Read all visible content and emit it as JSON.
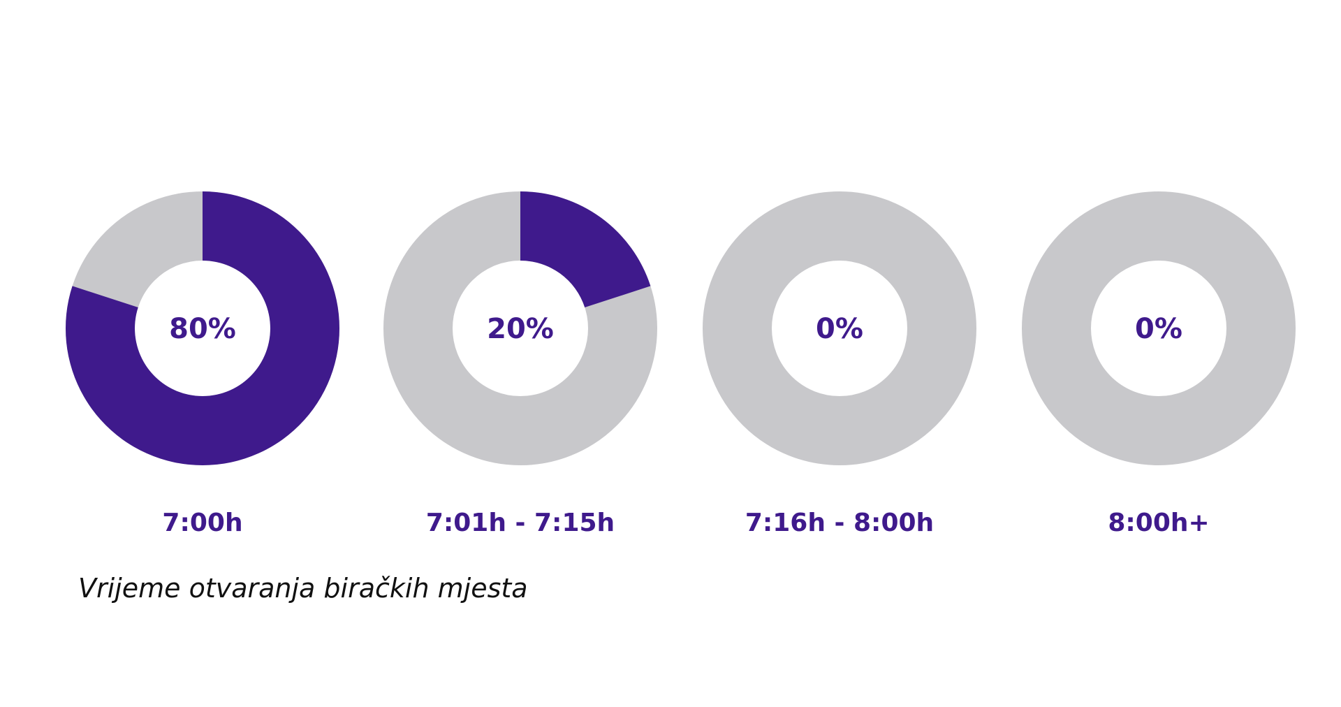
{
  "chart_data": {
    "type": "pie",
    "categories": [
      "7:00h",
      "7:01h - 7:15h",
      "7:16h - 8:00h",
      "8:00h+"
    ],
    "values": [
      80,
      20,
      0,
      0
    ],
    "value_labels": [
      "80%",
      "20%",
      "0%",
      "0%"
    ],
    "unit": "%",
    "caption": "Vrijeme otvaranja biračkih mjesta",
    "colors": {
      "filled": "#3f1a8c",
      "remainder": "#c8c8cb",
      "label": "#3f1a8c"
    }
  }
}
